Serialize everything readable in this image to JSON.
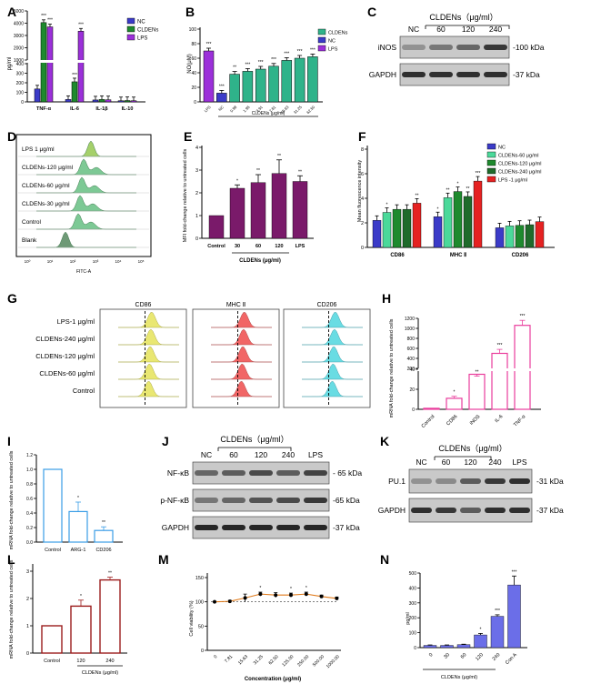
{
  "colors": {
    "nc": "#3b3bc8",
    "cld": "#1e8a2e",
    "lps": "#9b30d9",
    "teal": "#2fb38a",
    "red": "#e52222",
    "lgreen": "#4bd99a",
    "dgreen": "#1f6b2b",
    "purple": "#7a1a6a",
    "blue": "#3a9de6",
    "maroon": "#9b1c1c",
    "pink": "#ea3d9c",
    "orange": "#e07a1a",
    "lav": "#6b6ee8",
    "dg": "#555555"
  },
  "panels": {
    "A": {
      "letter": "A",
      "ylabel": "pg/ml",
      "yticks": [
        "0",
        "100",
        "200",
        "300",
        "400",
        "1000",
        "2000",
        "3000",
        "4000",
        "5000"
      ],
      "categories": [
        "TNF-α",
        "IL-6",
        "IL-1β",
        "IL-10"
      ],
      "legend": [
        "NC",
        "CLDENs",
        "LPS"
      ],
      "stars": [
        "***",
        "***",
        "***",
        "***"
      ]
    },
    "B": {
      "letter": "B",
      "ylabel": "NO(μM)",
      "yticks": [
        "0",
        "20",
        "40",
        "60",
        "80",
        "100"
      ],
      "categories": [
        "LPS",
        "NC",
        "0.98",
        "1.95",
        "3.91",
        "7.81",
        "15.63",
        "31.25",
        "62.50"
      ],
      "legend": [
        "CLDENs",
        "NC",
        "LPS"
      ],
      "xlabel": "CLDENs (μg/ml)",
      "stars": [
        "***",
        "**",
        "***",
        "***",
        "***",
        "***",
        "***",
        "***"
      ]
    },
    "C": {
      "letter": "C",
      "title": "CLDENs（μg/ml）",
      "cols": [
        "NC",
        "60",
        "120",
        "240"
      ],
      "rows": [
        "iNOS",
        "GAPDH"
      ],
      "kda": [
        "-100 kDa",
        "-37 kDa"
      ]
    },
    "D": {
      "letter": "D",
      "xlabel": "FITC-A",
      "labels": [
        "LPS 1 μg/ml",
        "CLDENs-120 μg/ml",
        "CLDENs-60 μg/ml",
        "CLDENs-30 μg/ml",
        "Control",
        "Blank"
      ],
      "xticks": [
        "10⁰",
        "10¹",
        "10²",
        "10³",
        "10⁴",
        "10⁵"
      ]
    },
    "E": {
      "letter": "E",
      "ylabel": "MFI fold-change relative to untreated cells",
      "yticks": [
        "0",
        "1",
        "2",
        "3",
        "4"
      ],
      "categories": [
        "Control",
        "30",
        "60",
        "120",
        "LPS"
      ],
      "xlabel": "CLDENs (μg/ml)",
      "stars": [
        "*",
        "**",
        "**",
        "**"
      ]
    },
    "F": {
      "letter": "F",
      "ylabel": "Mean fluorescence intensity",
      "yticks": [
        "0",
        "2",
        "4",
        "6",
        "8"
      ],
      "groups": [
        "CD86",
        "MHC Ⅱ",
        "CD206"
      ],
      "legend": [
        "NC",
        "CLDENs-60 μg/ml",
        "CLDENs-120 μg/ml",
        "CLDENs-240 μg/ml",
        "LPS -1 μg/ml"
      ],
      "stars": [
        "*",
        "**",
        "**",
        "*",
        "**",
        "*",
        "***"
      ]
    },
    "G": {
      "letter": "G",
      "columns": [
        "CD86",
        "MHC Ⅱ",
        "CD206"
      ],
      "labels": [
        "LPS-1 μg/ml",
        "CLDENs-240 μg/ml",
        "CLDENs-120 μg/ml",
        "CLDENs-60 μg/ml",
        "Control"
      ]
    },
    "H": {
      "letter": "H",
      "ylabel": "mRNA fold-change relative to untreated cells",
      "yticks": [
        "0",
        "20",
        "40",
        "200",
        "400",
        "600",
        "800",
        "1000",
        "1200"
      ],
      "categories": [
        "Control",
        "CD86",
        "iNOS",
        "IL-6",
        "TNF-α"
      ],
      "stars": [
        "*",
        "**",
        "***",
        "***"
      ]
    },
    "I": {
      "letter": "I",
      "ylabel": "mRNA fold-change relative to untreated cells",
      "yticks": [
        "0.0",
        "0.2",
        "0.4",
        "0.6",
        "0.8",
        "1.0",
        "1.2"
      ],
      "categories": [
        "Control",
        "ARG-1",
        "CD206"
      ],
      "stars": [
        "*",
        "**"
      ]
    },
    "J": {
      "letter": "J",
      "title": "CLDENs（μg/ml）",
      "cols": [
        "NC",
        "60",
        "120",
        "240",
        "LPS"
      ],
      "rows": [
        "NF-κB",
        "p-NF-κB",
        "GAPDH"
      ],
      "kda": [
        "- 65 kDa",
        "-65 kDa",
        "-37 kDa"
      ]
    },
    "K": {
      "letter": "K",
      "title": "CLDENs（μg/ml）",
      "cols": [
        "NC",
        "60",
        "120",
        "240",
        "LPS"
      ],
      "rows": [
        "PU.1",
        "GAPDH"
      ],
      "kda": [
        "-31 kDa",
        "-37 kDa"
      ]
    },
    "L": {
      "letter": "L",
      "ylabel": "mRNA fold-change relative to untreated cells",
      "yticks": [
        "0",
        "1",
        "2",
        "3"
      ],
      "categories": [
        "Control",
        "120",
        "240"
      ],
      "xlabel": "CLDENs (μg/ml)",
      "stars": [
        "*",
        "**"
      ]
    },
    "M": {
      "letter": "M",
      "ylabel": "Cell viability (%)",
      "xlabel": "Concentration (μg/ml)",
      "yticks": [
        "0",
        "50",
        "100",
        "150"
      ],
      "categories": [
        "0",
        "7.81",
        "15.63",
        "31.25",
        "62.50",
        "125.00",
        "250.00",
        "500.00",
        "1000.00"
      ],
      "stars": [
        "*",
        "*",
        "*"
      ]
    },
    "N": {
      "letter": "N",
      "ylabel": "pg/ml",
      "yticks": [
        "0",
        "100",
        "200",
        "300",
        "400",
        "500"
      ],
      "categories": [
        "0",
        "30",
        "60",
        "120",
        "240",
        "Con A"
      ],
      "xlabel": "CLDENs (μg/ml)",
      "stars": [
        "*",
        "***",
        "***"
      ]
    }
  },
  "chart_data": [
    {
      "id": "A",
      "type": "bar",
      "title": "",
      "ylabel": "pg/ml",
      "categories": [
        "TNF-α",
        "IL-6",
        "IL-1β",
        "IL-10"
      ],
      "series": [
        {
          "name": "NC",
          "values": [
            135,
            25,
            20,
            12
          ]
        },
        {
          "name": "CLDENs",
          "values": [
            4050,
            210,
            25,
            14
          ]
        },
        {
          "name": "LPS",
          "values": [
            3700,
            3350,
            22,
            12
          ]
        }
      ]
    },
    {
      "id": "B",
      "type": "bar",
      "ylabel": "NO(μM)",
      "ylim": [
        0,
        100
      ],
      "categories": [
        "LPS",
        "NC",
        "0.98",
        "1.95",
        "3.91",
        "7.81",
        "15.63",
        "31.25",
        "62.50"
      ],
      "values": [
        70,
        12,
        38,
        42,
        45,
        49,
        57,
        60,
        62
      ]
    },
    {
      "id": "E",
      "type": "bar",
      "ylabel": "MFI fold-change relative to untreated cells",
      "ylim": [
        0,
        4
      ],
      "categories": [
        "Control",
        "30",
        "60",
        "120",
        "LPS"
      ],
      "values": [
        1.0,
        2.2,
        2.45,
        2.85,
        2.5
      ],
      "errors": [
        0,
        0.15,
        0.35,
        0.6,
        0.25
      ]
    },
    {
      "id": "F",
      "type": "bar",
      "ylabel": "Mean fluorescence intensity",
      "ylim": [
        0,
        8
      ],
      "categories": [
        "CD86",
        "MHC Ⅱ",
        "CD206"
      ],
      "series": [
        {
          "name": "NC",
          "values": [
            2.2,
            2.5,
            1.6
          ]
        },
        {
          "name": "CLDENs-60 μg/ml",
          "values": [
            2.85,
            4.05,
            1.75
          ]
        },
        {
          "name": "CLDENs-120 μg/ml",
          "values": [
            3.1,
            4.55,
            1.8
          ]
        },
        {
          "name": "CLDENs-240 μg/ml",
          "values": [
            3.1,
            4.15,
            1.85
          ]
        },
        {
          "name": "LPS -1 μg/ml",
          "values": [
            3.6,
            5.4,
            2.1
          ]
        }
      ]
    },
    {
      "id": "H",
      "type": "bar",
      "ylabel": "mRNA fold-change relative to untreated cells",
      "categories": [
        "Control",
        "CD86",
        "iNOS",
        "IL-6",
        "TNF-α"
      ],
      "values": [
        1,
        11,
        35,
        500,
        1060
      ],
      "errors": [
        0,
        2,
        9,
        80,
        100
      ]
    },
    {
      "id": "I",
      "type": "bar",
      "ylabel": "mRNA fold-change relative to untreated cells",
      "ylim": [
        0,
        1.2
      ],
      "categories": [
        "Control",
        "ARG-1",
        "CD206"
      ],
      "values": [
        1.0,
        0.42,
        0.16
      ],
      "errors": [
        0,
        0.13,
        0.05
      ]
    },
    {
      "id": "L",
      "type": "bar",
      "ylabel": "mRNA fold-change relative to untreated cells",
      "ylim": [
        0,
        3
      ],
      "categories": [
        "Control",
        "120",
        "240"
      ],
      "values": [
        1.0,
        1.72,
        2.68
      ],
      "errors": [
        0,
        0.22,
        0.1
      ]
    },
    {
      "id": "M",
      "type": "line",
      "ylabel": "Cell viability (%)",
      "xlabel": "Concentration (μg/ml)",
      "ylim": [
        0,
        150
      ],
      "categories": [
        "0",
        "7.81",
        "15.63",
        "31.25",
        "62.50",
        "125.00",
        "250.00",
        "500.00",
        "1000.00"
      ],
      "values": [
        100,
        101,
        108,
        116,
        114,
        114,
        116,
        111,
        107
      ],
      "errors": [
        0,
        2,
        8,
        4,
        5,
        4,
        4,
        3,
        3
      ]
    },
    {
      "id": "N",
      "type": "bar",
      "ylabel": "pg/ml",
      "ylim": [
        0,
        500
      ],
      "xlabel": "CLDENs (μg/ml)",
      "categories": [
        "0",
        "30",
        "60",
        "120",
        "240",
        "Con A"
      ],
      "values": [
        15,
        15,
        20,
        85,
        210,
        420
      ],
      "errors": [
        3,
        3,
        3,
        10,
        10,
        60
      ]
    }
  ]
}
